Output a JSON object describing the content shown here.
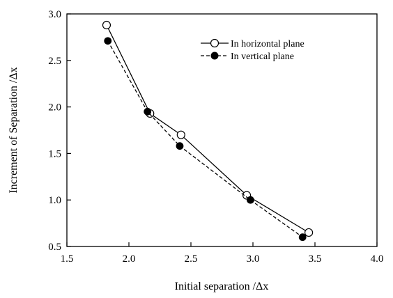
{
  "chart_data": {
    "type": "line",
    "xlabel": "Initial separation /Δx",
    "ylabel": "Increment of Separation /Δx",
    "xlim": [
      1.5,
      4.0
    ],
    "ylim": [
      0.5,
      3.0
    ],
    "x_ticks": [
      "1.5",
      "2.0",
      "2.5",
      "3.0",
      "3.5",
      "4.0"
    ],
    "y_ticks": [
      "0.5",
      "1.0",
      "1.5",
      "2.0",
      "2.5",
      "3.0"
    ],
    "grid": false,
    "legend_position": "top-right",
    "series": [
      {
        "name": "In horizontal plane",
        "marker": "open-circle",
        "line_style": "solid",
        "color": "#000000",
        "x": [
          1.82,
          2.17,
          2.42,
          2.95,
          3.45
        ],
        "y": [
          2.88,
          1.93,
          1.7,
          1.05,
          0.65
        ]
      },
      {
        "name": "In vertical plane",
        "marker": "filled-circle",
        "line_style": "dashed",
        "color": "#000000",
        "x": [
          1.83,
          2.15,
          2.41,
          2.98,
          3.4
        ],
        "y": [
          2.71,
          1.95,
          1.58,
          1.0,
          0.6
        ]
      }
    ]
  }
}
